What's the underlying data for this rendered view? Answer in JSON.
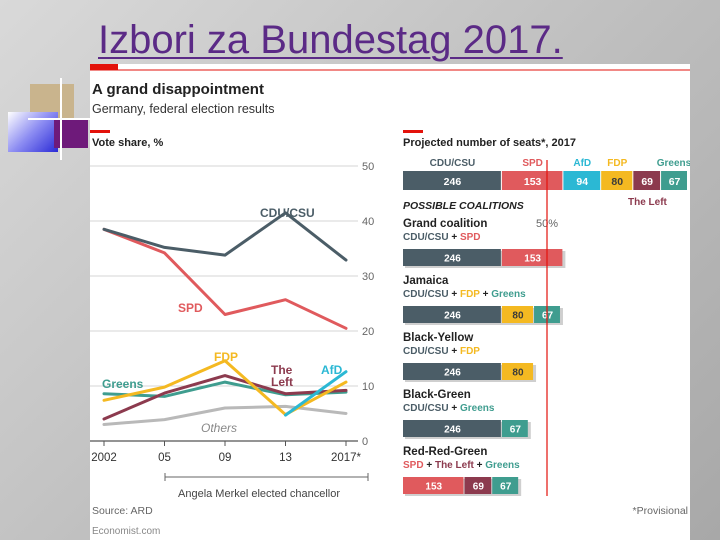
{
  "slide": {
    "title": "Izbori za Bundestag 2017."
  },
  "figure": {
    "headline": "A grand disappointment",
    "subhead": "Germany, federal election results",
    "source": "Source: ARD",
    "publisher": "Economist.com",
    "footnote": "*Provisional",
    "annotation": "Angela Merkel elected chancellor",
    "red_accent": "#e3120b"
  },
  "chart_data": [
    {
      "type": "line",
      "ylabel": "Vote share, %",
      "ylim": [
        0,
        50
      ],
      "yticks": [
        "0",
        "10",
        "20",
        "30",
        "40",
        "50"
      ],
      "x": [
        "2002",
        "05",
        "09",
        "13",
        "2017*"
      ],
      "series": [
        {
          "name": "CDU/CSU",
          "color": "#4b5d67",
          "values": [
            38.5,
            35.2,
            33.8,
            41.5,
            32.9
          ]
        },
        {
          "name": "SPD",
          "color": "#e05a5d",
          "values": [
            38.5,
            34.2,
            23.0,
            25.7,
            20.5
          ]
        },
        {
          "name": "FDP",
          "color": "#f4b921",
          "values": [
            7.4,
            9.8,
            14.6,
            4.8,
            10.7
          ]
        },
        {
          "name": "The Left",
          "color": "#8c3a4e",
          "values": [
            4.0,
            8.7,
            11.9,
            8.6,
            9.2
          ]
        },
        {
          "name": "Greens",
          "color": "#3f9d8f",
          "values": [
            8.6,
            8.1,
            10.7,
            8.4,
            8.9
          ]
        },
        {
          "name": "AfD",
          "color": "#2bb8d4",
          "values": [
            null,
            null,
            null,
            4.7,
            12.6
          ]
        },
        {
          "name": "Others",
          "color": "#b9b9b9",
          "values": [
            3.0,
            3.9,
            6.0,
            6.3,
            5.0
          ]
        }
      ]
    },
    {
      "type": "bar",
      "title": "Projected number of seats*, 2017",
      "threshold_label": "50%",
      "total": 709,
      "segments": [
        {
          "name": "CDU/CSU",
          "value": 246,
          "color": "#4b5d67"
        },
        {
          "name": "SPD",
          "value": 153,
          "color": "#e05a5d"
        },
        {
          "name": "AfD",
          "value": 94,
          "color": "#2bb8d4"
        },
        {
          "name": "FDP",
          "value": 80,
          "color": "#f4b921"
        },
        {
          "name": "The Left",
          "value": 69,
          "color": "#8c3a4e"
        },
        {
          "name": "Greens",
          "value": 67,
          "color": "#3f9d8f"
        }
      ],
      "coalitions_heading": "POSSIBLE COALITIONS",
      "coalitions": [
        {
          "name": "Grand coalition",
          "parties": [
            "CDU/CSU",
            "SPD"
          ],
          "values": [
            246,
            153
          ]
        },
        {
          "name": "Jamaica",
          "parties": [
            "CDU/CSU",
            "FDP",
            "Greens"
          ],
          "values": [
            246,
            80,
            67
          ]
        },
        {
          "name": "Black-Yellow",
          "parties": [
            "CDU/CSU",
            "FDP"
          ],
          "values": [
            246,
            80
          ]
        },
        {
          "name": "Black-Green",
          "parties": [
            "CDU/CSU",
            "Greens"
          ],
          "values": [
            246,
            67
          ]
        },
        {
          "name": "Red-Red-Green",
          "parties": [
            "SPD",
            "The Left",
            "Greens"
          ],
          "values": [
            153,
            69,
            67
          ]
        }
      ]
    }
  ]
}
